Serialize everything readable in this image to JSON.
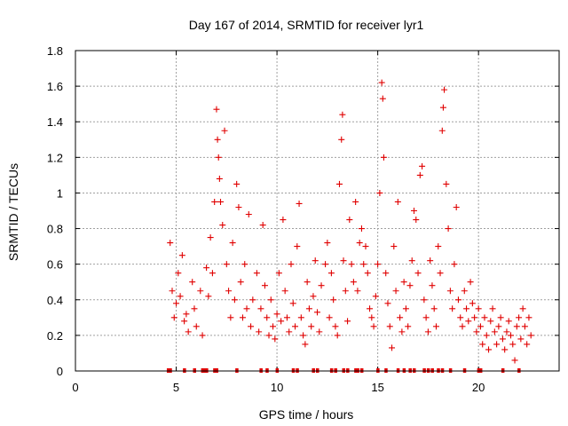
{
  "chart_data": {
    "type": "scatter",
    "title": "Day 167 of 2014, SRMTID for receiver lyr1",
    "xlabel": "GPS time / hours",
    "ylabel": "SRMTID / TECUs",
    "xlim": [
      0,
      24
    ],
    "ylim": [
      0,
      1.8
    ],
    "xticks": [
      "0",
      "5",
      "10",
      "15",
      "20"
    ],
    "yticks": [
      "0",
      "0.2",
      "0.4",
      "0.6",
      "0.8",
      "1",
      "1.2",
      "1.4",
      "1.6",
      "1.8"
    ],
    "grid": true,
    "marker": "+",
    "color": "#e00000",
    "series": [
      {
        "name": "SRMTID",
        "points": [
          [
            4.7,
            0.72
          ],
          [
            4.8,
            0.45
          ],
          [
            4.9,
            0.3
          ],
          [
            5.0,
            0.38
          ],
          [
            5.1,
            0.55
          ],
          [
            5.2,
            0.42
          ],
          [
            5.3,
            0.65
          ],
          [
            5.4,
            0.28
          ],
          [
            5.5,
            0.32
          ],
          [
            5.6,
            0.22
          ],
          [
            5.8,
            0.5
          ],
          [
            5.9,
            0.35
          ],
          [
            6.0,
            0.25
          ],
          [
            6.2,
            0.45
          ],
          [
            6.3,
            0.2
          ],
          [
            6.5,
            0.58
          ],
          [
            6.6,
            0.42
          ],
          [
            6.7,
            0.75
          ],
          [
            6.8,
            0.55
          ],
          [
            6.9,
            0.95
          ],
          [
            7.0,
            1.47
          ],
          [
            7.05,
            1.3
          ],
          [
            7.1,
            1.2
          ],
          [
            7.15,
            1.08
          ],
          [
            7.2,
            0.95
          ],
          [
            7.3,
            0.82
          ],
          [
            7.4,
            1.35
          ],
          [
            7.5,
            0.6
          ],
          [
            7.6,
            0.45
          ],
          [
            7.7,
            0.3
          ],
          [
            7.8,
            0.72
          ],
          [
            7.9,
            0.4
          ],
          [
            8.0,
            1.05
          ],
          [
            8.1,
            0.92
          ],
          [
            8.2,
            0.5
          ],
          [
            8.3,
            0.3
          ],
          [
            8.4,
            0.6
          ],
          [
            8.5,
            0.35
          ],
          [
            8.6,
            0.88
          ],
          [
            8.7,
            0.25
          ],
          [
            8.8,
            0.4
          ],
          [
            9.0,
            0.55
          ],
          [
            9.1,
            0.22
          ],
          [
            9.2,
            0.35
          ],
          [
            9.3,
            0.82
          ],
          [
            9.4,
            0.48
          ],
          [
            9.5,
            0.3
          ],
          [
            9.6,
            0.2
          ],
          [
            9.7,
            0.4
          ],
          [
            9.8,
            0.25
          ],
          [
            9.9,
            0.18
          ],
          [
            10.0,
            0.32
          ],
          [
            10.1,
            0.55
          ],
          [
            10.2,
            0.28
          ],
          [
            10.3,
            0.85
          ],
          [
            10.4,
            0.45
          ],
          [
            10.5,
            0.3
          ],
          [
            10.6,
            0.22
          ],
          [
            10.7,
            0.6
          ],
          [
            10.8,
            0.38
          ],
          [
            10.9,
            0.25
          ],
          [
            11.0,
            0.7
          ],
          [
            11.1,
            0.94
          ],
          [
            11.2,
            0.3
          ],
          [
            11.3,
            0.2
          ],
          [
            11.4,
            0.15
          ],
          [
            11.5,
            0.5
          ],
          [
            11.6,
            0.35
          ],
          [
            11.7,
            0.25
          ],
          [
            11.8,
            0.42
          ],
          [
            11.9,
            0.62
          ],
          [
            12.0,
            0.33
          ],
          [
            12.1,
            0.22
          ],
          [
            12.2,
            0.48
          ],
          [
            12.4,
            0.6
          ],
          [
            12.5,
            0.72
          ],
          [
            12.6,
            0.3
          ],
          [
            12.7,
            0.55
          ],
          [
            12.8,
            0.4
          ],
          [
            12.9,
            0.25
          ],
          [
            13.0,
            0.2
          ],
          [
            13.1,
            1.05
          ],
          [
            13.2,
            1.3
          ],
          [
            13.25,
            1.44
          ],
          [
            13.3,
            0.62
          ],
          [
            13.4,
            0.45
          ],
          [
            13.5,
            0.28
          ],
          [
            13.6,
            0.85
          ],
          [
            13.7,
            0.6
          ],
          [
            13.8,
            0.5
          ],
          [
            13.9,
            0.95
          ],
          [
            14.0,
            0.45
          ],
          [
            14.1,
            0.72
          ],
          [
            14.2,
            0.8
          ],
          [
            14.3,
            0.6
          ],
          [
            14.4,
            0.7
          ],
          [
            14.5,
            0.55
          ],
          [
            14.6,
            0.35
          ],
          [
            14.7,
            0.3
          ],
          [
            14.8,
            0.25
          ],
          [
            14.9,
            0.42
          ],
          [
            15.0,
            0.6
          ],
          [
            15.1,
            1.0
          ],
          [
            15.2,
            1.62
          ],
          [
            15.25,
            1.53
          ],
          [
            15.3,
            1.2
          ],
          [
            15.4,
            0.55
          ],
          [
            15.5,
            0.38
          ],
          [
            15.6,
            0.25
          ],
          [
            15.7,
            0.13
          ],
          [
            15.8,
            0.7
          ],
          [
            15.9,
            0.45
          ],
          [
            16.0,
            0.95
          ],
          [
            16.1,
            0.3
          ],
          [
            16.2,
            0.22
          ],
          [
            16.3,
            0.5
          ],
          [
            16.4,
            0.35
          ],
          [
            16.5,
            0.25
          ],
          [
            16.6,
            0.48
          ],
          [
            16.7,
            0.62
          ],
          [
            16.8,
            0.9
          ],
          [
            16.9,
            0.85
          ],
          [
            17.0,
            0.55
          ],
          [
            17.1,
            1.1
          ],
          [
            17.2,
            1.15
          ],
          [
            17.3,
            0.4
          ],
          [
            17.4,
            0.3
          ],
          [
            17.5,
            0.22
          ],
          [
            17.6,
            0.62
          ],
          [
            17.7,
            0.48
          ],
          [
            17.8,
            0.35
          ],
          [
            17.9,
            0.25
          ],
          [
            18.0,
            0.7
          ],
          [
            18.1,
            0.55
          ],
          [
            18.2,
            1.35
          ],
          [
            18.25,
            1.48
          ],
          [
            18.3,
            1.58
          ],
          [
            18.4,
            1.05
          ],
          [
            18.5,
            0.8
          ],
          [
            18.6,
            0.45
          ],
          [
            18.7,
            0.35
          ],
          [
            18.8,
            0.6
          ],
          [
            18.9,
            0.92
          ],
          [
            19.0,
            0.4
          ],
          [
            19.1,
            0.3
          ],
          [
            19.2,
            0.25
          ],
          [
            19.3,
            0.45
          ],
          [
            19.4,
            0.35
          ],
          [
            19.5,
            0.28
          ],
          [
            19.6,
            0.5
          ],
          [
            19.7,
            0.38
          ],
          [
            19.8,
            0.3
          ],
          [
            19.9,
            0.22
          ],
          [
            20.0,
            0.35
          ],
          [
            20.1,
            0.25
          ],
          [
            20.2,
            0.15
          ],
          [
            20.3,
            0.3
          ],
          [
            20.4,
            0.2
          ],
          [
            20.5,
            0.12
          ],
          [
            20.6,
            0.28
          ],
          [
            20.7,
            0.35
          ],
          [
            20.8,
            0.22
          ],
          [
            20.9,
            0.15
          ],
          [
            21.0,
            0.25
          ],
          [
            21.1,
            0.3
          ],
          [
            21.2,
            0.18
          ],
          [
            21.3,
            0.12
          ],
          [
            21.4,
            0.22
          ],
          [
            21.5,
            0.28
          ],
          [
            21.6,
            0.2
          ],
          [
            21.7,
            0.15
          ],
          [
            21.8,
            0.06
          ],
          [
            21.9,
            0.25
          ],
          [
            22.0,
            0.3
          ],
          [
            22.1,
            0.18
          ],
          [
            22.2,
            0.35
          ],
          [
            22.3,
            0.25
          ],
          [
            22.4,
            0.15
          ],
          [
            22.5,
            0.3
          ],
          [
            22.6,
            0.2
          ]
        ]
      }
    ],
    "gap_markers_x": [
      4.6,
      4.7,
      5.4,
      5.9,
      6.3,
      6.4,
      6.5,
      6.9,
      7.0,
      8.0,
      9.2,
      9.5,
      10.0,
      10.8,
      11.0,
      11.8,
      12.0,
      12.7,
      12.9,
      13.3,
      13.5,
      13.9,
      14.0,
      14.2,
      15.0,
      15.4,
      16.0,
      16.3,
      16.6,
      16.8,
      17.3,
      17.5,
      17.7,
      18.0,
      18.2,
      18.6,
      19.3,
      20.0,
      20.1,
      21.2,
      22.0
    ]
  }
}
